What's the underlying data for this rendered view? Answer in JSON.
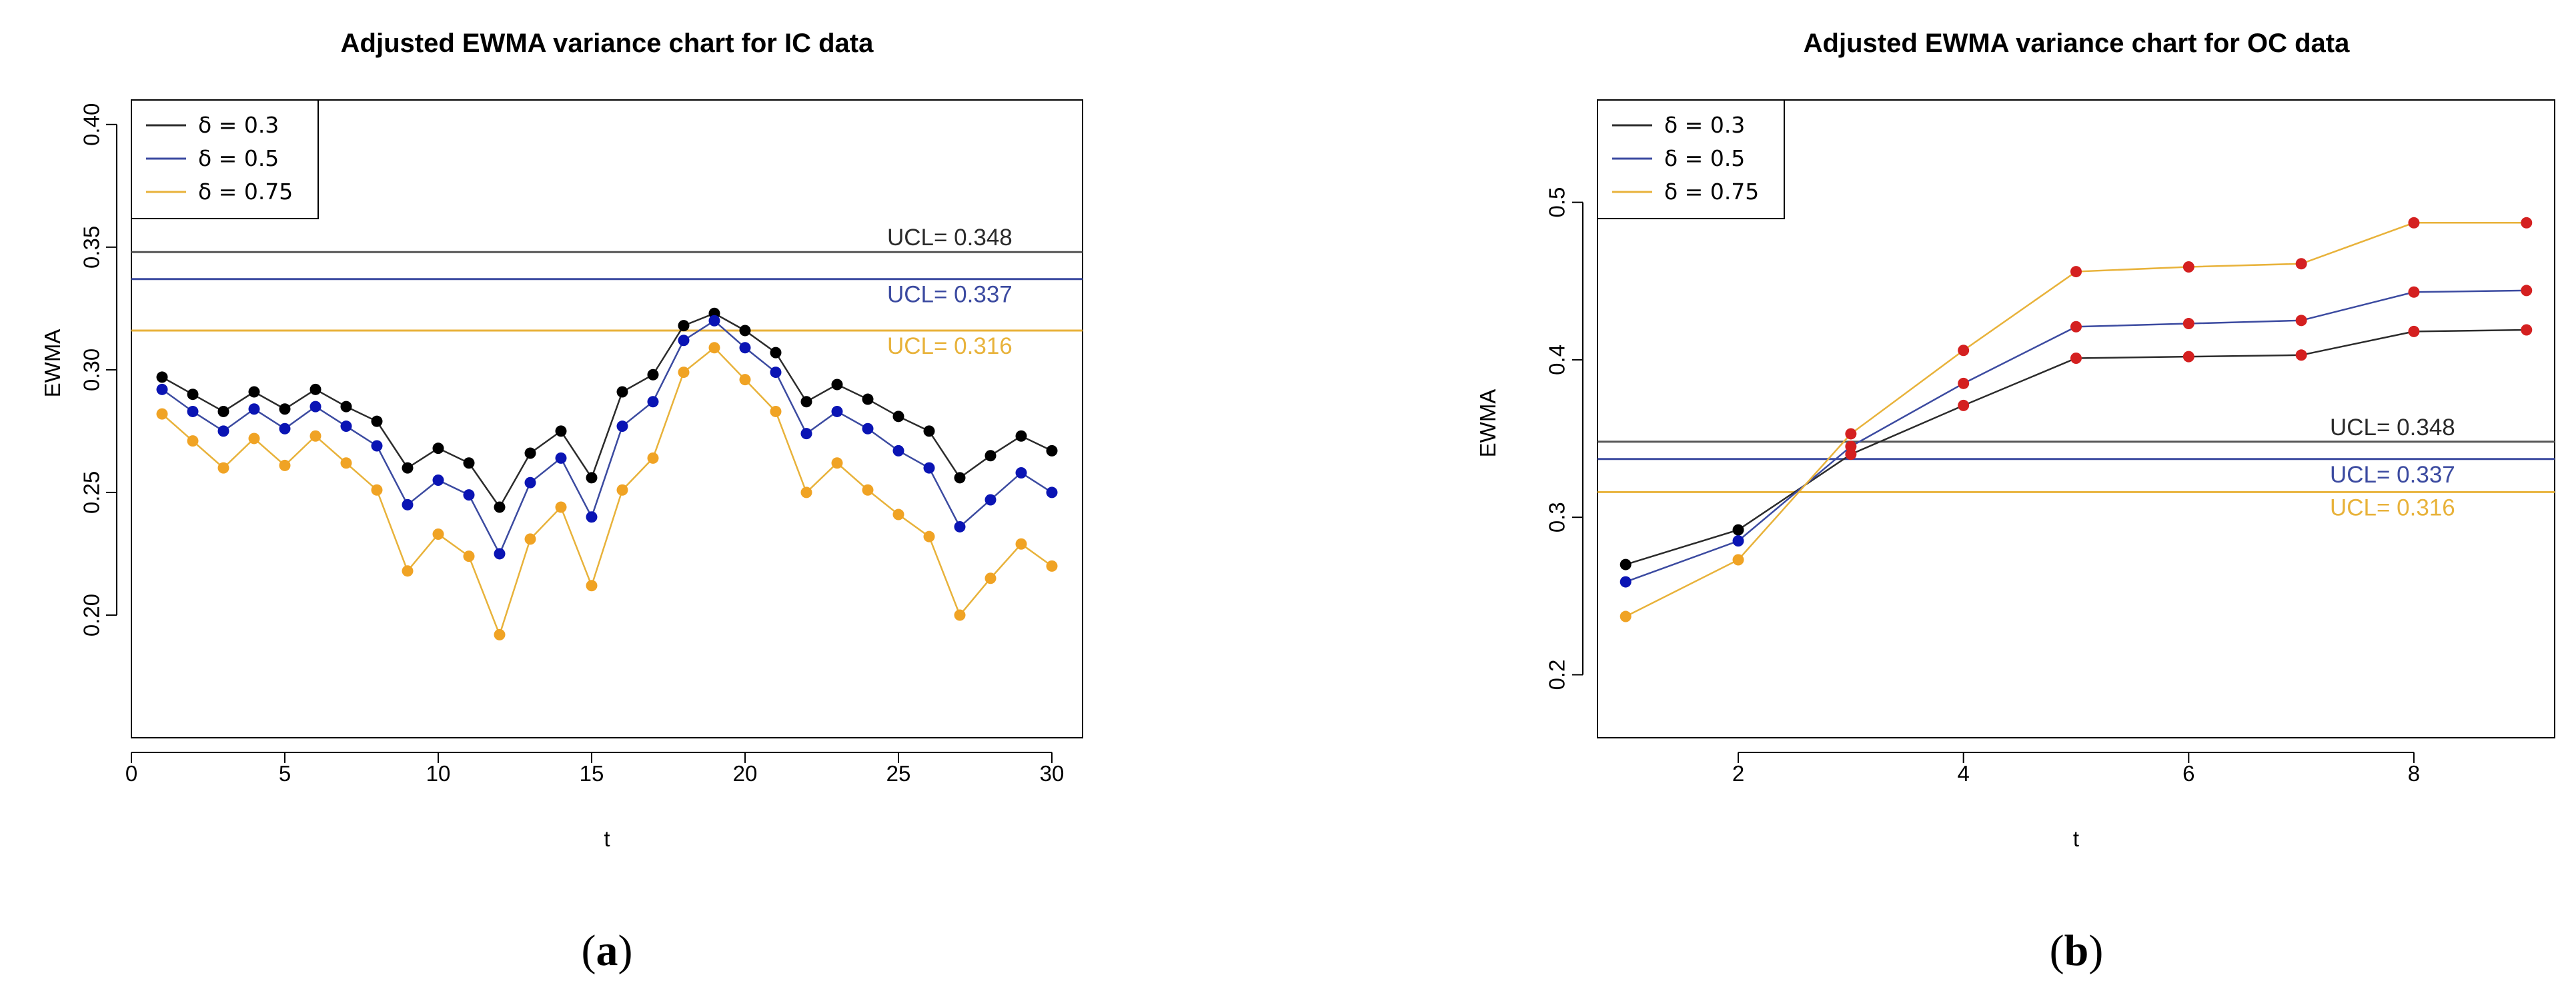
{
  "chart_data": [
    {
      "type": "line",
      "title": "Adjusted EWMA variance chart for IC data",
      "xlabel": "t",
      "ylabel": "EWMA",
      "caption_prefix": "(",
      "caption_letter": "a",
      "caption_suffix": ")",
      "xlim": [
        0,
        31
      ],
      "ylim": [
        0.15,
        0.41
      ],
      "xticks": [
        0,
        5,
        10,
        15,
        20,
        25,
        30
      ],
      "xtick_labels": [
        "0",
        "5",
        "10",
        "15",
        "20",
        "25",
        "30"
      ],
      "yticks": [
        0.2,
        0.25,
        0.3,
        0.35,
        0.4
      ],
      "ytick_labels": [
        "0.20",
        "0.25",
        "0.30",
        "0.35",
        "0.40"
      ],
      "x": [
        1,
        2,
        3,
        4,
        5,
        6,
        7,
        8,
        9,
        10,
        11,
        12,
        13,
        14,
        15,
        16,
        17,
        18,
        19,
        20,
        21,
        22,
        23,
        24,
        25,
        26,
        27,
        28,
        29,
        30
      ],
      "series": [
        {
          "name": "δ = 0.3",
          "line_color": "#2b2b2b",
          "point_color": "#000000",
          "values": [
            0.297,
            0.29,
            0.283,
            0.291,
            0.284,
            0.292,
            0.285,
            0.279,
            0.26,
            0.268,
            0.262,
            0.244,
            0.266,
            0.275,
            0.256,
            0.291,
            0.298,
            0.318,
            0.323,
            0.316,
            0.307,
            0.287,
            0.294,
            0.288,
            0.281,
            0.275,
            0.256,
            0.265,
            0.273,
            0.267
          ]
        },
        {
          "name": "δ = 0.5",
          "line_color": "#3b4aa0",
          "point_color": "#0a14b4",
          "values": [
            0.292,
            0.283,
            0.275,
            0.284,
            0.276,
            0.285,
            0.277,
            0.269,
            0.245,
            0.255,
            0.249,
            0.225,
            0.254,
            0.264,
            0.24,
            0.277,
            0.287,
            0.312,
            0.32,
            0.309,
            0.299,
            0.274,
            0.283,
            0.276,
            0.267,
            0.26,
            0.236,
            0.247,
            0.258,
            0.25
          ]
        },
        {
          "name": "δ = 0.75",
          "line_color": "#e8b23a",
          "point_color": "#f0a324",
          "values": [
            0.282,
            0.271,
            0.26,
            0.272,
            0.261,
            0.273,
            0.262,
            0.251,
            0.218,
            0.233,
            0.224,
            0.192,
            0.231,
            0.244,
            0.212,
            0.251,
            0.264,
            0.299,
            0.309,
            0.296,
            0.283,
            0.25,
            0.262,
            0.251,
            0.241,
            0.232,
            0.2,
            0.215,
            0.229,
            0.22
          ]
        }
      ],
      "ucl": [
        {
          "label": "UCL= 0.348",
          "value": 0.348,
          "line_color": "#555555",
          "text_color": "#2b2b2b"
        },
        {
          "label": "UCL= 0.337",
          "value": 0.337,
          "line_color": "#3b4aa0",
          "text_color": "#3b4aa0"
        },
        {
          "label": "UCL= 0.316",
          "value": 0.316,
          "line_color": "#e8b23a",
          "text_color": "#e8b23a"
        }
      ],
      "legend_position": "top-left"
    },
    {
      "type": "line",
      "title": "Adjusted EWMA variance chart for OC data",
      "xlabel": "t",
      "ylabel": "EWMA",
      "caption_prefix": "(",
      "caption_letter": "b",
      "caption_suffix": ")",
      "xlim": [
        0.75,
        9.25
      ],
      "ylim": [
        0.16,
        0.565
      ],
      "xticks": [
        2,
        4,
        6,
        8
      ],
      "xtick_labels": [
        "2",
        "4",
        "6",
        "8"
      ],
      "yticks": [
        0.2,
        0.3,
        0.4,
        0.5
      ],
      "ytick_labels": [
        "0.2",
        "0.3",
        "0.4",
        "0.5"
      ],
      "x": [
        1,
        2,
        3,
        4,
        5,
        6,
        7,
        8,
        9
      ],
      "series": [
        {
          "name": "δ = 0.3",
          "line_color": "#2b2b2b",
          "point_color": "#000000",
          "values": [
            0.27,
            0.292,
            0.34,
            0.371,
            0.401,
            0.402,
            0.403,
            0.418,
            0.419
          ]
        },
        {
          "name": "δ = 0.5",
          "line_color": "#3b4aa0",
          "point_color": "#0a14b4",
          "values": [
            0.259,
            0.285,
            0.345,
            0.385,
            0.421,
            0.423,
            0.425,
            0.443,
            0.444
          ]
        },
        {
          "name": "δ = 0.75",
          "line_color": "#e8b23a",
          "point_color": "#f0a324",
          "values": [
            0.237,
            0.273,
            0.353,
            0.406,
            0.456,
            0.459,
            0.461,
            0.487,
            0.487
          ]
        }
      ],
      "highlight_from_index": 2,
      "highlight_color": "#d42020",
      "ucl": [
        {
          "label": "UCL= 0.348",
          "value": 0.348,
          "line_color": "#555555",
          "text_color": "#2b2b2b"
        },
        {
          "label": "UCL= 0.337",
          "value": 0.337,
          "line_color": "#3b4aa0",
          "text_color": "#3b4aa0"
        },
        {
          "label": "UCL= 0.316",
          "value": 0.316,
          "line_color": "#e8b23a",
          "text_color": "#e8b23a"
        }
      ],
      "legend_position": "top-left"
    }
  ]
}
